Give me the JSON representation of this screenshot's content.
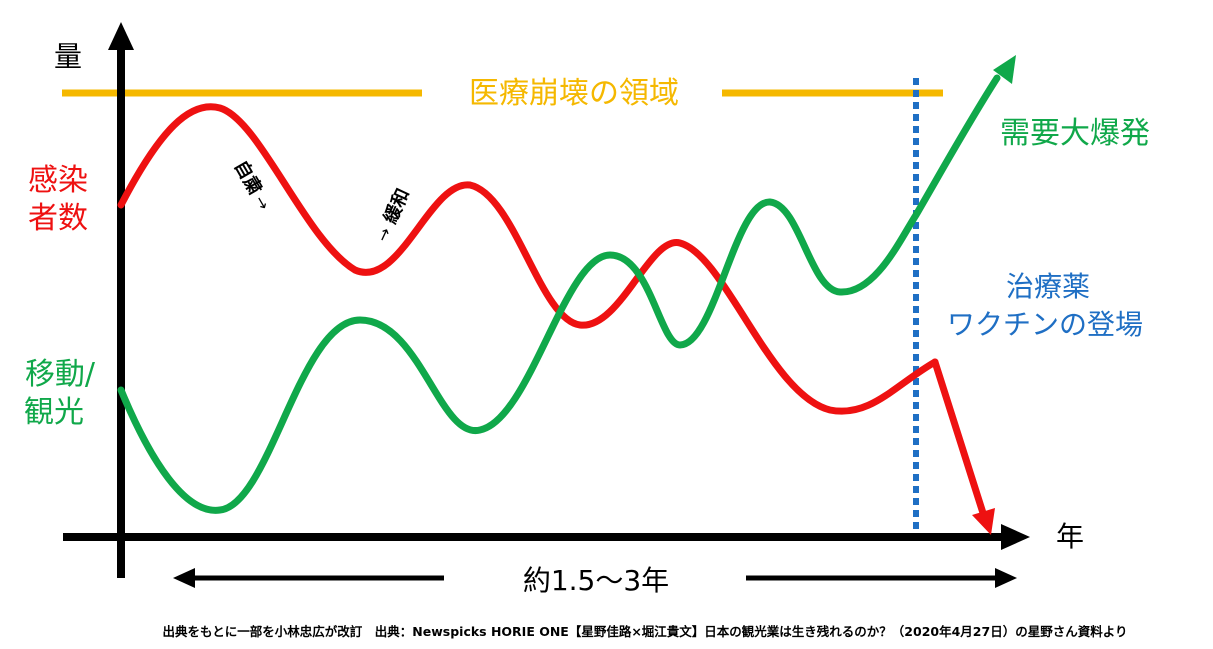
{
  "axes": {
    "y_label": "量",
    "x_label": "年"
  },
  "labels": {
    "collapse_zone": "医療崩壊の領域",
    "infections_line1": "感染",
    "infections_line2": "者数",
    "mobility_line1": "移動/",
    "mobility_line2": "観光",
    "demand_boom": "需要大爆発",
    "treatment_line1": "治療薬",
    "treatment_line2": "ワクチンの登場",
    "self_restraint": "自粛",
    "self_restraint_arrow": "→",
    "relaxation": "緩和",
    "relaxation_arrow": "→",
    "duration": "約1.5～3年",
    "source": "出典をもとに一部を小林忠広が改訂　出典：Newspicks HORIE ONE【星野佳路×堀江貴文】日本の観光業は生き残れるのか？（2020年4月27日）の星野さん資料より"
  },
  "colors": {
    "axis": "#000000",
    "collapse": "#f5b800",
    "infections": "#ee1111",
    "mobility": "#10a84a",
    "treatment": "#1f6fc4",
    "text": "#000000"
  },
  "icons": {
    "arrowheads": "triangle"
  }
}
